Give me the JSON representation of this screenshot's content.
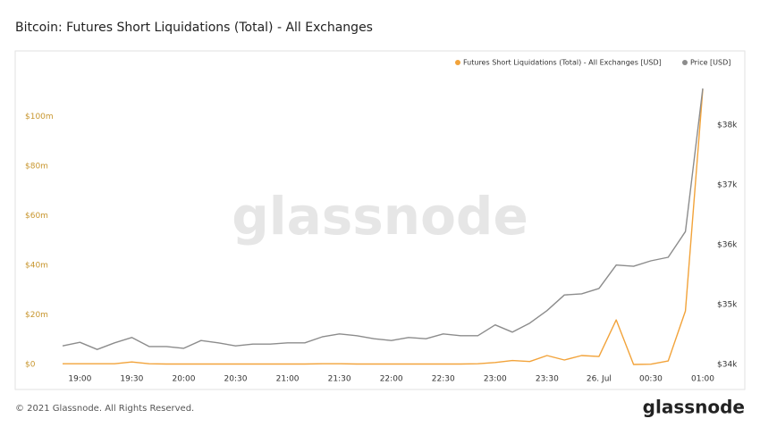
{
  "chart_data": {
    "type": "line",
    "title": "Bitcoin: Futures Short Liquidations (Total) - All Exchanges",
    "watermark": "glassnode",
    "footer": "© 2021 Glassnode. All Rights Reserved.",
    "brand": "glassnode",
    "categories": [
      null,
      "19:00",
      null,
      null,
      "19:30",
      null,
      null,
      "20:00",
      null,
      null,
      "20:30",
      null,
      null,
      "21:00",
      null,
      null,
      "21:30",
      null,
      null,
      "22:00",
      null,
      null,
      "22:30",
      null,
      null,
      "23:00",
      null,
      null,
      "23:30",
      null,
      null,
      "26. Jul",
      null,
      null,
      "00:30",
      null,
      null,
      "01:00"
    ],
    "series": [
      {
        "name": "Futures Short Liquidations (Total) - All Exchanges [USD]",
        "color": "#f2a33a",
        "axis": "y",
        "values": [
          300000,
          300000,
          300000,
          300000,
          1000000,
          300000,
          200000,
          200000,
          200000,
          200000,
          200000,
          200000,
          200000,
          200000,
          200000,
          300000,
          300000,
          200000,
          200000,
          200000,
          200000,
          200000,
          200000,
          200000,
          300000,
          800000,
          1600000,
          1200000,
          3600000,
          1800000,
          3600000,
          3200000,
          18000000,
          0,
          100000,
          1400000,
          21600000,
          111000000
        ]
      },
      {
        "name": "Price [USD]",
        "color": "#8c8c8c",
        "axis": "y2",
        "values": [
          34310,
          34370,
          34250,
          34360,
          34450,
          34300,
          34300,
          34270,
          34400,
          34360,
          34310,
          34340,
          34340,
          34360,
          34360,
          34460,
          34510,
          34480,
          34430,
          34400,
          34450,
          34430,
          34510,
          34480,
          34480,
          34660,
          34540,
          34690,
          34900,
          35160,
          35180,
          35270,
          35660,
          35640,
          35730,
          35790,
          36220,
          38610
        ]
      }
    ],
    "ylim": [
      -1800000,
      112800000
    ],
    "yticks": [
      {
        "value": 0,
        "label": "$0"
      },
      {
        "value": 20000000,
        "label": "$20m"
      },
      {
        "value": 40000000,
        "label": "$40m"
      },
      {
        "value": 60000000,
        "label": "$60m"
      },
      {
        "value": 80000000,
        "label": "$80m"
      },
      {
        "value": 100000000,
        "label": "$100m"
      }
    ],
    "y2lim": [
      33925,
      38670
    ],
    "y2ticks": [
      {
        "value": 34000,
        "label": "$34k"
      },
      {
        "value": 35000,
        "label": "$35k"
      },
      {
        "value": 36000,
        "label": "$36k"
      },
      {
        "value": 37000,
        "label": "$37k"
      },
      {
        "value": 38000,
        "label": "$38k"
      }
    ],
    "grid": false,
    "legend": "top-right"
  }
}
